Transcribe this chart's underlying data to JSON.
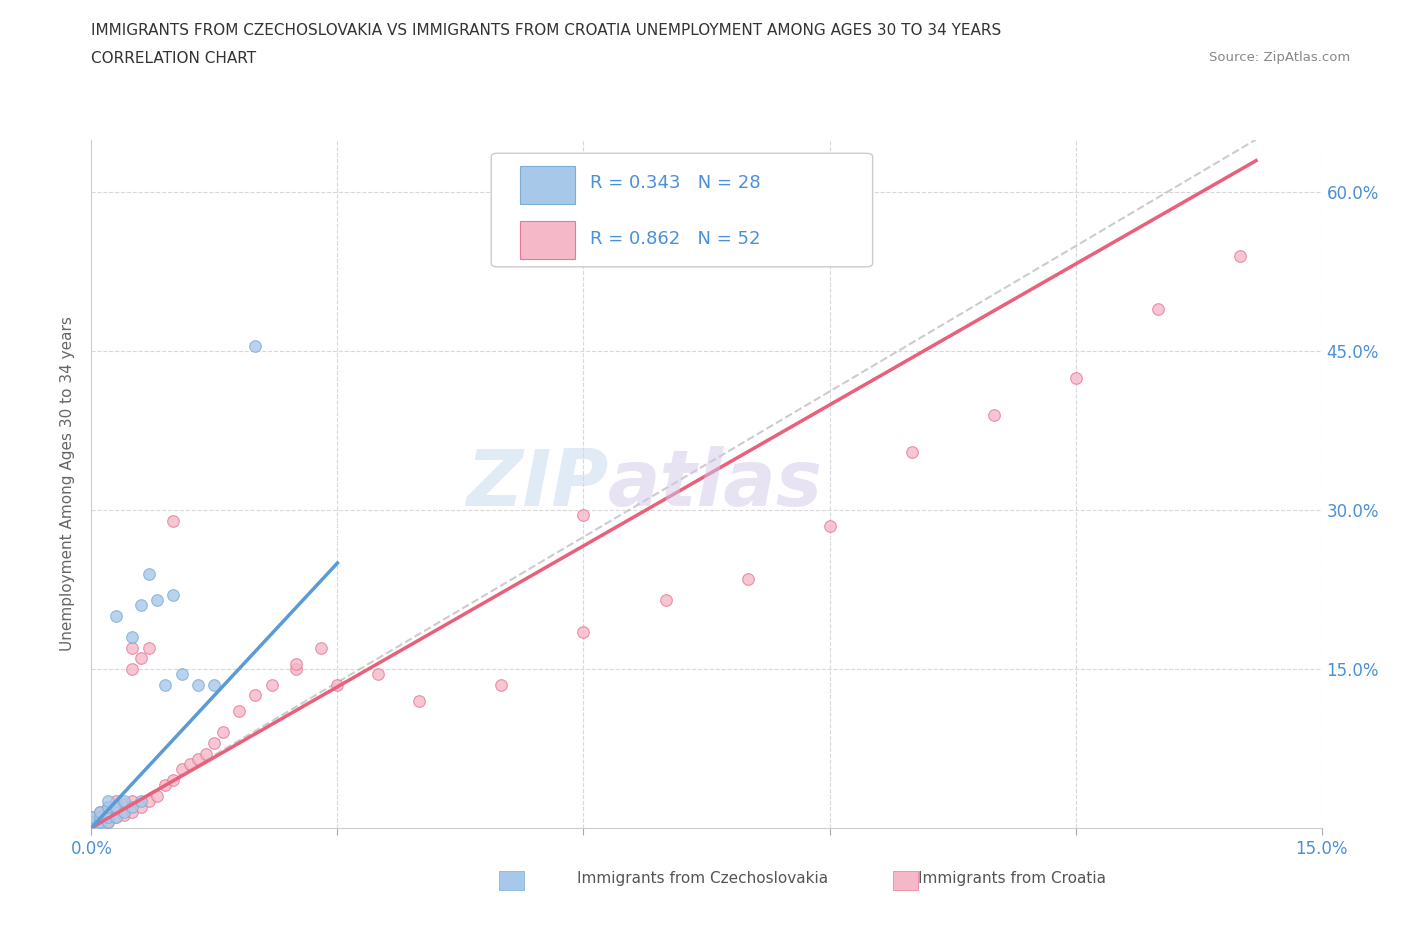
{
  "title_line1": "IMMIGRANTS FROM CZECHOSLOVAKIA VS IMMIGRANTS FROM CROATIA UNEMPLOYMENT AMONG AGES 30 TO 34 YEARS",
  "title_line2": "CORRELATION CHART",
  "source_text": "Source: ZipAtlas.com",
  "ylabel": "Unemployment Among Ages 30 to 34 years",
  "xlim": [
    0.0,
    0.15
  ],
  "ylim": [
    0.0,
    0.65
  ],
  "xticks": [
    0.0,
    0.03,
    0.06,
    0.09,
    0.12,
    0.15
  ],
  "yticks": [
    0.0,
    0.15,
    0.3,
    0.45,
    0.6
  ],
  "xticklabels_show": [
    "0.0%",
    "",
    "",
    "",
    "",
    "15.0%"
  ],
  "yticklabels_right": [
    "",
    "15.0%",
    "30.0%",
    "45.0%",
    "60.0%"
  ],
  "watermark_zip": "ZIP",
  "watermark_atlas": "atlas",
  "legend_R1": "R = 0.343",
  "legend_N1": "N = 28",
  "legend_R2": "R = 0.862",
  "legend_N2": "N = 52",
  "color_czech_fill": "#a8c8ea",
  "color_czech_edge": "#7aaed4",
  "color_croatia_fill": "#f5b8c8",
  "color_croatia_edge": "#e87898",
  "color_trend_czech": "#5b9bd5",
  "color_trend_croatia": "#e8607a",
  "color_ref_line": "#c0c0c0",
  "color_axis_text": "#4a90d9",
  "color_grid": "#d8d8d8",
  "background_color": "#ffffff",
  "czech_x": [
    0.0,
    0.0,
    0.0,
    0.001,
    0.001,
    0.001,
    0.001,
    0.002,
    0.002,
    0.002,
    0.002,
    0.003,
    0.003,
    0.003,
    0.004,
    0.004,
    0.005,
    0.005,
    0.006,
    0.006,
    0.007,
    0.008,
    0.009,
    0.01,
    0.011,
    0.013,
    0.015,
    0.02
  ],
  "czech_y": [
    0.0,
    0.005,
    0.01,
    0.0,
    0.005,
    0.01,
    0.015,
    0.005,
    0.01,
    0.02,
    0.025,
    0.01,
    0.02,
    0.2,
    0.015,
    0.025,
    0.02,
    0.18,
    0.025,
    0.21,
    0.24,
    0.215,
    0.135,
    0.22,
    0.145,
    0.135,
    0.135,
    0.455
  ],
  "croatia_x": [
    0.0,
    0.0,
    0.0,
    0.001,
    0.001,
    0.001,
    0.002,
    0.002,
    0.002,
    0.003,
    0.003,
    0.003,
    0.004,
    0.004,
    0.005,
    0.005,
    0.005,
    0.006,
    0.006,
    0.007,
    0.007,
    0.008,
    0.009,
    0.01,
    0.011,
    0.012,
    0.013,
    0.014,
    0.015,
    0.016,
    0.018,
    0.02,
    0.022,
    0.025,
    0.028,
    0.03,
    0.035,
    0.04,
    0.05,
    0.06,
    0.07,
    0.08,
    0.09,
    0.1,
    0.11,
    0.12,
    0.13,
    0.14,
    0.06,
    0.025,
    0.01,
    0.005
  ],
  "croatia_y": [
    0.0,
    0.005,
    0.01,
    0.0,
    0.008,
    0.015,
    0.005,
    0.012,
    0.02,
    0.01,
    0.018,
    0.025,
    0.012,
    0.022,
    0.015,
    0.025,
    0.15,
    0.02,
    0.16,
    0.025,
    0.17,
    0.03,
    0.04,
    0.045,
    0.055,
    0.06,
    0.065,
    0.07,
    0.08,
    0.09,
    0.11,
    0.125,
    0.135,
    0.15,
    0.17,
    0.135,
    0.145,
    0.12,
    0.135,
    0.185,
    0.215,
    0.235,
    0.285,
    0.355,
    0.39,
    0.425,
    0.49,
    0.54,
    0.295,
    0.155,
    0.29,
    0.17
  ],
  "czech_trend": [
    0.0,
    0.03,
    0.25
  ],
  "croatia_trend_x": [
    0.0,
    0.142
  ],
  "croatia_trend_y": [
    0.0,
    0.63
  ],
  "ref_line_x": [
    0.0,
    0.142
  ],
  "ref_line_y": [
    0.0,
    0.65
  ]
}
